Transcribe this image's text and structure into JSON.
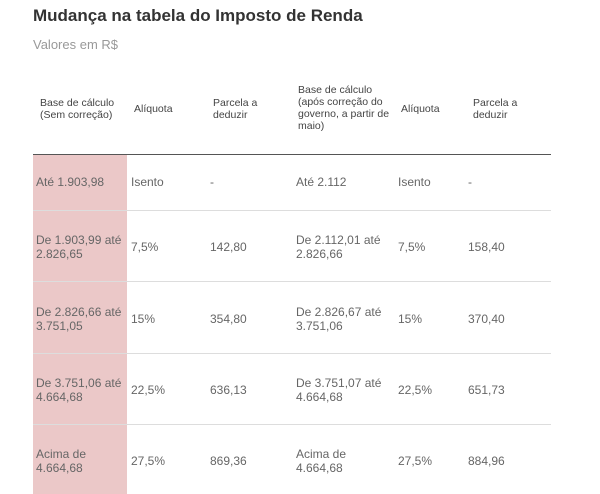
{
  "title": "Mudança na tabela do Imposto de Renda",
  "subtitle": "Valores em R$",
  "headers": [
    "Base de cálculo (Sem correção)",
    "Alíquota",
    "Parcela a deduzir",
    "Base de cálculo (após correção do governo, a partir de maio)",
    "Alíquota",
    "Parcela a deduzir"
  ],
  "rows": [
    [
      "Até 1.903,98",
      "Isento",
      "-",
      "Até 2.112",
      "Isento",
      "-"
    ],
    [
      "De 1.903,99 até 2.826,65",
      "7,5%",
      "142,80",
      "De 2.112,01 até 2.826,66",
      "7,5%",
      "158,40"
    ],
    [
      "De 2.826,66 até 3.751,05",
      "15%",
      "354,80",
      "De 2.826,67 até 3.751,06",
      "15%",
      "370,40"
    ],
    [
      "De 3.751,06 até 4.664,68",
      "22,5%",
      "636,13",
      "De 3.751,07 até 4.664,68",
      "22,5%",
      "651,73"
    ],
    [
      "Acima de 4.664,68",
      "27,5%",
      "869,36",
      "Acima de 4.664,68",
      "27,5%",
      "884,96"
    ]
  ],
  "colors": {
    "highlight_column": "#ebc8c8",
    "header_rule": "#555555",
    "row_rule": "#dddddd"
  }
}
